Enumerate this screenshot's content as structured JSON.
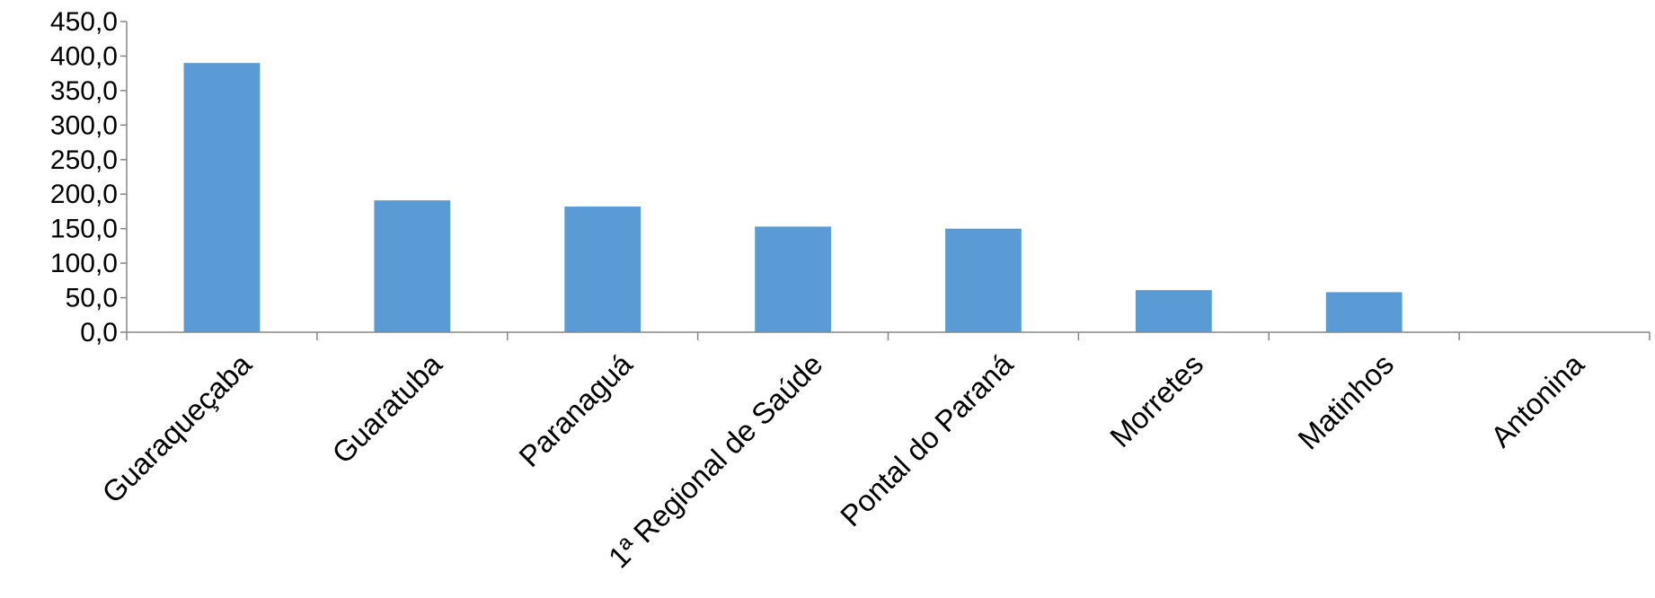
{
  "chart_data": {
    "type": "bar",
    "categories": [
      "Guaraqueçaba",
      "Guaratuba",
      "Paranaguá",
      "1ª Regional de Saúde",
      "Pontal do Paraná",
      "Morretes",
      "Matinhos",
      "Antonina"
    ],
    "values": [
      390.0,
      191.0,
      182.0,
      153.0,
      150.0,
      61.0,
      58.0,
      0.0
    ],
    "ylim": [
      0,
      450
    ],
    "yticks": [
      0,
      50,
      100,
      150,
      200,
      250,
      300,
      350,
      400,
      450
    ],
    "ytick_labels": [
      "0,0",
      "50,0",
      "100,0",
      "150,0",
      "200,0",
      "250,0",
      "300,0",
      "350,0",
      "400,0",
      "450,0"
    ],
    "grid": false,
    "legend": "none",
    "bar_color": "#5b9bd5",
    "axis_color": "#868686"
  }
}
